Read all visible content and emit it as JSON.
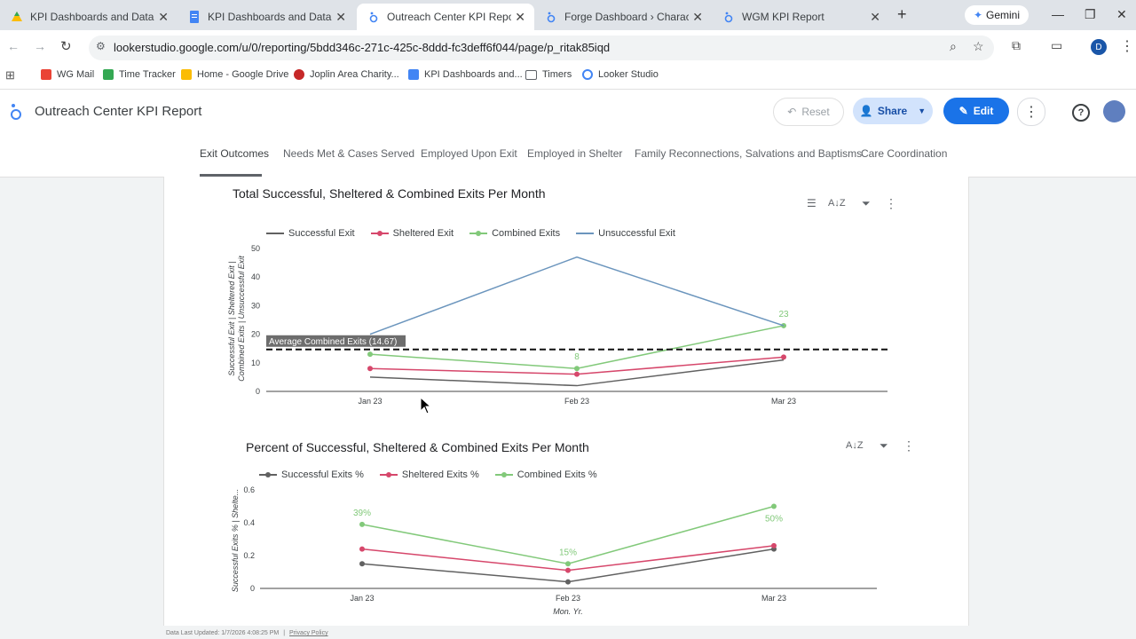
{
  "browser": {
    "tabs": [
      {
        "title": "KPI Dashboards and Data Links"
      },
      {
        "title": "KPI Dashboards and Data Links"
      },
      {
        "title": "Outreach Center KPI Report › Ex"
      },
      {
        "title": "Forge Dashboard › Character Ex"
      },
      {
        "title": "WGM KPI Report"
      }
    ],
    "new_tab": "+",
    "gemini": "Gemini",
    "url": "lookerstudio.google.com/u/0/reporting/5bdd346c-271c-425c-8ddd-fc3deff6f044/page/p_ritak85iqd",
    "profile_initial": "D",
    "bookmarks": [
      "WG Mail",
      "Time Tracker",
      "Home - Google Drive",
      "Joplin Area Charity...",
      "KPI Dashboards and...",
      "Timers",
      "Looker Studio"
    ]
  },
  "report": {
    "title": "Outreach Center KPI Report",
    "reset": "Reset",
    "share": "Share",
    "edit": "Edit",
    "pages": [
      "Exit Outcomes",
      "Needs Met & Cases Served",
      "Employed Upon Exit",
      "Employed in Shelter",
      "Family Reconnections, Salvations and Baptisms",
      "Care Coordination"
    ]
  },
  "chart1": {
    "title": "Total Successful, Sheltered & Combined Exits Per Month",
    "legend": [
      "Successful Exit",
      "Sheltered Exit",
      "Combined Exits",
      "Unsuccessful Exit"
    ],
    "ylabel_line1": "Successful Exit | Sheltered Exit |",
    "ylabel_line2": "Combined Exits | Unsuccessful Exit",
    "avg_label": "Average Combined Exits (14.67)"
  },
  "chart2": {
    "title": "Percent of Successful, Sheltered & Combined Exits Per Month",
    "legend": [
      "Successful Exits %",
      "Sheltered Exits %",
      "Combined Exits %"
    ],
    "ylabel": "Successful Exits % | Shelte...",
    "xlabel": "Mon. Yr."
  },
  "footer": {
    "updated": "Data Last Updated: 1/7/2026 4:08:25 PM",
    "privacy": "Privacy Policy"
  },
  "colors": {
    "successful": "#616161",
    "sheltered": "#d6476b",
    "combined": "#82c97a",
    "unsuccessful": "#6b95bd",
    "edit_blue": "#1a73e8"
  },
  "chart_data": [
    {
      "type": "line",
      "title": "Total Successful, Sheltered & Combined Exits Per Month",
      "categories": [
        "Jan 23",
        "Feb 23",
        "Mar 23"
      ],
      "series": [
        {
          "name": "Successful Exit",
          "values": [
            5,
            2,
            11
          ]
        },
        {
          "name": "Sheltered Exit",
          "values": [
            8,
            6,
            12
          ]
        },
        {
          "name": "Combined Exits",
          "values": [
            13,
            8,
            23
          ]
        },
        {
          "name": "Unsuccessful Exit",
          "values": [
            20,
            47,
            23
          ]
        }
      ],
      "ylim": [
        0,
        50
      ],
      "yticks": [
        0,
        10,
        20,
        30,
        40,
        50
      ],
      "reference_line": {
        "label": "Average Combined Exits (14.67)",
        "value": 14.67
      },
      "data_labels": [
        {
          "series": "Combined Exits",
          "category": "Feb 23",
          "text": "8"
        },
        {
          "series": "Combined Exits",
          "category": "Mar 23",
          "text": "23"
        }
      ]
    },
    {
      "type": "line",
      "title": "Percent of Successful, Sheltered & Combined Exits Per Month",
      "categories": [
        "Jan 23",
        "Feb 23",
        "Mar 23"
      ],
      "series": [
        {
          "name": "Successful Exits %",
          "values": [
            0.15,
            0.04,
            0.24
          ]
        },
        {
          "name": "Sheltered Exits %",
          "values": [
            0.24,
            0.11,
            0.26
          ]
        },
        {
          "name": "Combined Exits %",
          "values": [
            0.39,
            0.15,
            0.5
          ]
        }
      ],
      "ylim": [
        0,
        0.6
      ],
      "yticks": [
        "0",
        "0.2",
        "0.4",
        "0.6"
      ],
      "xlabel": "Mon. Yr.",
      "data_labels": [
        {
          "series": "Combined Exits %",
          "category": "Jan 23",
          "text": "39%"
        },
        {
          "series": "Combined Exits %",
          "category": "Feb 23",
          "text": "15%"
        },
        {
          "series": "Combined Exits %",
          "category": "Mar 23",
          "text": "50%"
        }
      ]
    }
  ]
}
